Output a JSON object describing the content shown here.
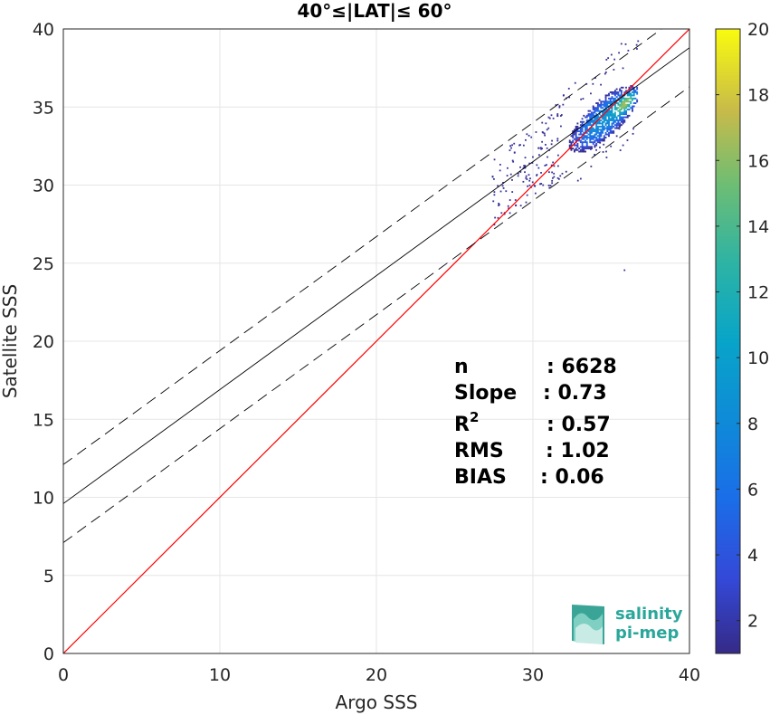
{
  "chart_data": {
    "type": "scatter",
    "title": "40°≤|LAT|≤ 60°",
    "xlabel": "Argo SSS",
    "ylabel": "Satellite SSS",
    "xlim": [
      0,
      40
    ],
    "ylim": [
      0,
      40
    ],
    "xticks": [
      "0",
      "10",
      "20",
      "30",
      "40"
    ],
    "yticks": [
      "0",
      "5",
      "10",
      "15",
      "20",
      "25",
      "30",
      "35",
      "40"
    ],
    "grid": true,
    "colorbar": {
      "min": 1,
      "max": 20,
      "ticks": [
        "2",
        "4",
        "6",
        "8",
        "10",
        "12",
        "14",
        "16",
        "18",
        "20"
      ],
      "colormap": "parula"
    },
    "density_center": {
      "x": 34.5,
      "y": 34.2
    },
    "density_range": {
      "x": [
        27.3,
        36.7
      ],
      "y": [
        24.6,
        39.1
      ]
    },
    "reference_lines": [
      {
        "name": "1:1",
        "slope": 1,
        "intercept": 0,
        "color": "#ff0000"
      },
      {
        "name": "fit",
        "slope": 0.73,
        "intercept": 9.6,
        "color": "#000000"
      },
      {
        "name": "fit+",
        "slope": 0.73,
        "intercept": 12.1,
        "color": "#000000",
        "style": "dashed"
      },
      {
        "name": "fit-",
        "slope": 0.73,
        "intercept": 7.1,
        "color": "#000000",
        "style": "dashed"
      }
    ],
    "stats": [
      {
        "label": "n",
        "value": ": 6628"
      },
      {
        "label": "Slope",
        "value": ": 0.73"
      },
      {
        "label": "R",
        "sup": "2",
        "value": ": 0.57"
      },
      {
        "label": "RMS",
        "value": ": 1.02"
      },
      {
        "label": "BIAS",
        "value": ": 0.06"
      }
    ]
  },
  "logo": {
    "line1": "salinity",
    "line2": "pi-mep"
  }
}
